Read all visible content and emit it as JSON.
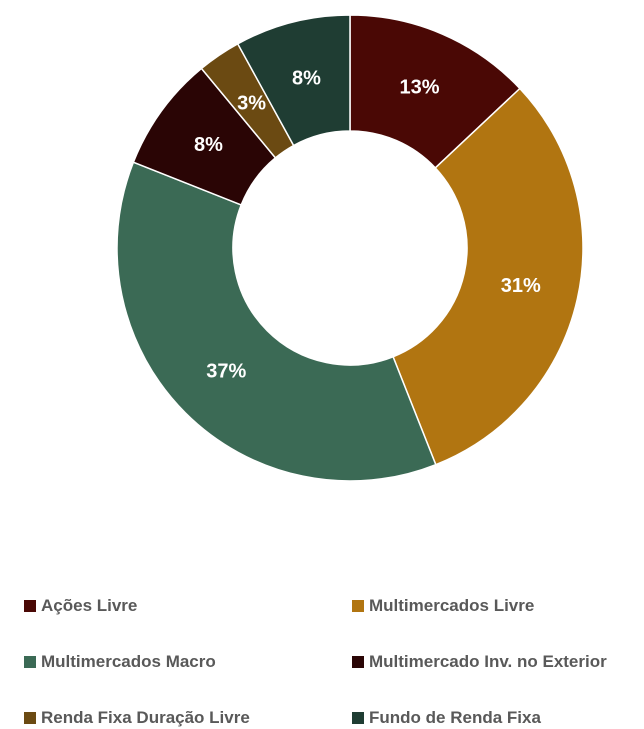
{
  "chart_data": {
    "type": "pie",
    "donut": true,
    "legend_position": "bottom",
    "slices": [
      {
        "name": "Ações Livre",
        "value": 13,
        "label": "13%",
        "color": "#4A0805"
      },
      {
        "name": "Multimercados Livre",
        "value": 31,
        "label": "31%",
        "color": "#B17511"
      },
      {
        "name": "Multimercados Macro",
        "value": 37,
        "label": "37%",
        "color": "#3B6A55"
      },
      {
        "name": "Multimercado Inv. no Exterior",
        "value": 8,
        "label": "8%",
        "color": "#2A0505"
      },
      {
        "name": "Renda Fixa Duração Livre",
        "value": 3,
        "label": "3%",
        "color": "#6B4A12"
      },
      {
        "name": "Fundo de Renda Fixa",
        "value": 8,
        "label": "8%",
        "color": "#1F3D33"
      }
    ]
  }
}
